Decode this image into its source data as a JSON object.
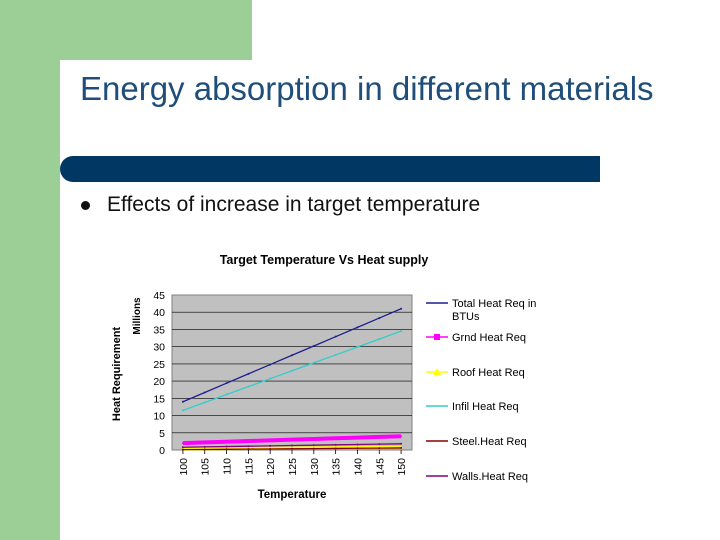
{
  "slide": {
    "title": "Energy absorption in different materials",
    "bullet": "Effects of increase in target temperature",
    "colors": {
      "title": "#1e4e79",
      "bar": "#003763",
      "accent": "#9ccf96"
    }
  },
  "chart_data": {
    "type": "line",
    "title": "Target Temperature Vs Heat supply",
    "xlabel": "Temperature",
    "ylabel": "Heat Requirement",
    "yunit": "Millions",
    "ylim": [
      0,
      45
    ],
    "yticks": [
      0,
      5,
      10,
      15,
      20,
      25,
      30,
      35,
      40,
      45
    ],
    "categories": [
      100,
      105,
      110,
      115,
      120,
      125,
      130,
      135,
      140,
      145,
      150
    ],
    "grid": true,
    "legend": "right",
    "plot_background": "#c0c0c0",
    "series": [
      {
        "name": "Total Heat Req in BTUs",
        "color": "#1f1f8f",
        "values": [
          14,
          16.7,
          19.4,
          22.1,
          24.8,
          27.5,
          30.2,
          32.9,
          35.6,
          38.3,
          41
        ]
      },
      {
        "name": "Grnd Heat Req",
        "color": "#ff00ff",
        "values": [
          2,
          2.2,
          2.4,
          2.6,
          2.8,
          3,
          3.2,
          3.4,
          3.6,
          3.8,
          4
        ]
      },
      {
        "name": "Roof Heat Req",
        "color": "#ffff00",
        "values": [
          0.3,
          0.35,
          0.4,
          0.45,
          0.5,
          0.55,
          0.6,
          0.65,
          0.7,
          0.75,
          0.8
        ]
      },
      {
        "name": "Infil Heat Req",
        "color": "#33cccc",
        "values": [
          11.5,
          13.8,
          16.1,
          18.4,
          20.7,
          23,
          25.3,
          27.6,
          29.9,
          32.2,
          34.5
        ]
      },
      {
        "name": "Steel.Heat Req",
        "color": "#800000",
        "values": [
          0.1,
          0.15,
          0.2,
          0.25,
          0.3,
          0.35,
          0.4,
          0.45,
          0.5,
          0.55,
          0.6
        ]
      },
      {
        "name": "Walls.Heat Req",
        "color": "#800080",
        "values": [
          0.8,
          0.9,
          1,
          1.1,
          1.2,
          1.3,
          1.4,
          1.5,
          1.6,
          1.7,
          1.8
        ]
      }
    ]
  }
}
